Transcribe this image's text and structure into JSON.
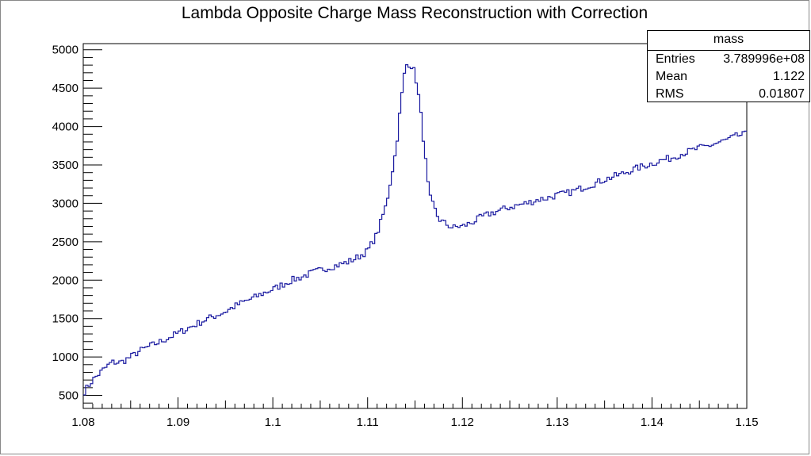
{
  "chart_data": {
    "type": "line",
    "title": "Lambda Opposite Charge Mass Reconstruction with Correction",
    "xlabel": "",
    "ylabel": "",
    "xlim": [
      1.08,
      1.15
    ],
    "ylim": [
      330,
      5080
    ],
    "x_ticks": [
      1.08,
      1.09,
      1.1,
      1.11,
      1.12,
      1.13,
      1.14,
      1.15
    ],
    "x_tick_labels": [
      "1.08",
      "1.09",
      "1.1",
      "1.11",
      "1.12",
      "1.13",
      "1.14",
      "1.15"
    ],
    "y_ticks": [
      500,
      1000,
      1500,
      2000,
      2500,
      3000,
      3500,
      4000,
      4500,
      5000
    ],
    "y_tick_labels": [
      "500",
      "1000",
      "1500",
      "2000",
      "2500",
      "3000",
      "3500",
      "4000",
      "4500",
      "5000"
    ],
    "grid": false,
    "line_color": "#1a1aa0",
    "series": [
      {
        "name": "",
        "x": [
          1.08,
          1.081,
          1.082,
          1.083,
          1.084,
          1.085,
          1.086,
          1.087,
          1.088,
          1.089,
          1.09,
          1.091,
          1.092,
          1.093,
          1.094,
          1.095,
          1.096,
          1.097,
          1.098,
          1.099,
          1.1,
          1.101,
          1.102,
          1.103,
          1.104,
          1.105,
          1.106,
          1.107,
          1.108,
          1.109,
          1.11,
          1.111,
          1.112,
          1.113,
          1.1135,
          1.114,
          1.1145,
          1.115,
          1.1155,
          1.116,
          1.1165,
          1.117,
          1.1175,
          1.118,
          1.119,
          1.1195,
          1.12,
          1.121,
          1.122,
          1.123,
          1.124,
          1.125,
          1.126,
          1.127,
          1.128,
          1.129,
          1.13,
          1.131,
          1.132,
          1.133,
          1.134,
          1.135,
          1.136,
          1.137,
          1.138,
          1.139,
          1.14,
          1.141,
          1.142,
          1.143,
          1.144,
          1.145,
          1.146,
          1.147,
          1.148,
          1.149,
          1.15
        ],
        "y": [
          530,
          700,
          820,
          930,
          930,
          1000,
          1080,
          1140,
          1190,
          1250,
          1310,
          1370,
          1430,
          1490,
          1540,
          1590,
          1660,
          1720,
          1770,
          1830,
          1880,
          1940,
          2000,
          2040,
          2090,
          2130,
          2170,
          2200,
          2240,
          2300,
          2380,
          2600,
          3000,
          3700,
          4300,
          4800,
          4820,
          4700,
          4300,
          3700,
          3100,
          2950,
          2800,
          2750,
          2680,
          2700,
          2700,
          2750,
          2820,
          2870,
          2910,
          2950,
          2980,
          3010,
          3050,
          3070,
          3110,
          3130,
          3170,
          3220,
          3260,
          3310,
          3350,
          3390,
          3440,
          3480,
          3520,
          3560,
          3590,
          3640,
          3680,
          3720,
          3750,
          3790,
          3830,
          3880,
          3900
        ]
      }
    ]
  },
  "stats": {
    "title": "mass",
    "rows": [
      {
        "label": "Entries",
        "value": "3.789996e+08"
      },
      {
        "label": "Mean",
        "value": "1.122"
      },
      {
        "label": "RMS",
        "value": "0.01807"
      }
    ]
  }
}
